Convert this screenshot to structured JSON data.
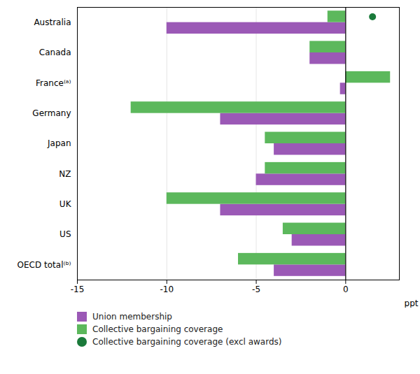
{
  "chart_data": {
    "type": "bar",
    "orientation": "horizontal",
    "categories": [
      "Australia",
      "Canada",
      "France⁽ᵃ⁾",
      "Germany",
      "Japan",
      "NZ",
      "UK",
      "US",
      "OECD total⁽ᵇ⁾"
    ],
    "series": [
      {
        "name": "Union membership",
        "color": "#9b59b6",
        "values": [
          -10.0,
          -2.0,
          -0.3,
          -7.0,
          -4.0,
          -5.0,
          -7.0,
          -3.0,
          -4.0
        ]
      },
      {
        "name": "Collective bargaining coverage",
        "color": "#5cb85c",
        "values": [
          -1.0,
          -2.0,
          2.5,
          -12.0,
          -4.5,
          -4.5,
          -10.0,
          -3.5,
          -6.0
        ]
      },
      {
        "name": "Collective bargaining coverage (excl awards)",
        "type": "scatter",
        "marker": "circle",
        "color": "#1a7a3a",
        "values": [
          1.5,
          null,
          null,
          null,
          null,
          null,
          null,
          null,
          null
        ]
      }
    ],
    "xlabel": "ppt",
    "xlim": [
      -15,
      3
    ],
    "xticks": [
      -15,
      -10,
      -5,
      0
    ],
    "grid": true,
    "legend": "lower left"
  }
}
